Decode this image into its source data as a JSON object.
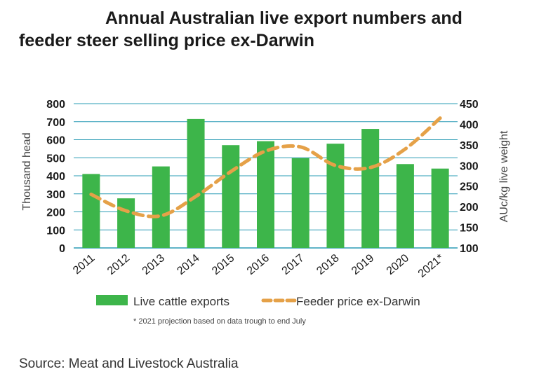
{
  "title_line_1": "Annual Australian live export numbers and",
  "title_line_2": "feeder steer selling price ex-Darwin",
  "source": "Source: Meat and Livestock Australia",
  "footnote": "* 2021 projection based on data trough to end July",
  "colors": {
    "bar": "#3db54a",
    "line": "#e5a148",
    "grid": "#2a9cb5"
  },
  "chart_data": {
    "type": "bar",
    "categories": [
      "2011",
      "2012",
      "2013",
      "2014",
      "2015",
      "2016",
      "2017",
      "2018",
      "2019",
      "2020",
      "2021*"
    ],
    "series": [
      {
        "name": "Live cattle exports",
        "type": "bar",
        "axis": "left",
        "values": [
          410,
          275,
          452,
          715,
          570,
          592,
          498,
          578,
          660,
          465,
          440
        ]
      },
      {
        "name": "Feeder price ex-Darwin",
        "type": "line",
        "axis": "right",
        "style": "dashed",
        "values": [
          230,
          190,
          178,
          225,
          285,
          335,
          345,
          300,
          295,
          340,
          415
        ]
      }
    ],
    "ylabel": "Thousand head",
    "ylabel_right": "AUc/kg live weight",
    "ylim": [
      0,
      800
    ],
    "ylim_right": [
      100,
      450
    ],
    "yticks": [
      "0",
      "100",
      "200",
      "300",
      "400",
      "500",
      "600",
      "700",
      "800"
    ],
    "yticks_right": [
      "100",
      "150",
      "200",
      "250",
      "300",
      "350",
      "400",
      "450"
    ],
    "grid": true,
    "legend_position": "bottom"
  }
}
